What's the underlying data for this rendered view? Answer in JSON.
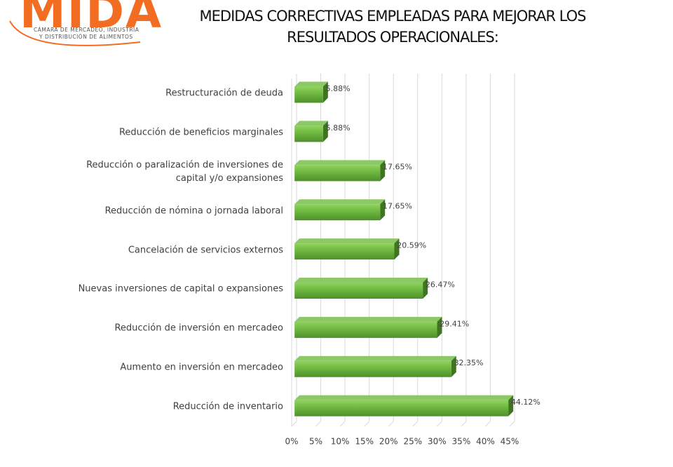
{
  "header": {
    "logo": "MIDA",
    "logo_subtitle_1": "CÁMARA DE MERCADEO, INDUSTRIA",
    "logo_subtitle_2": "Y DISTRIBUCIÓN DE ALIMENTOS"
  },
  "chart_data": {
    "type": "bar",
    "orientation": "horizontal",
    "title": "MEDIDAS CORRECTIVAS EMPLEADAS PARA MEJORAR LOS RESULTADOS OPERACIONALES:",
    "categories": [
      "Restructuración de deuda",
      "Reducción de beneficios marginales",
      "Reducción o paralización de inversiones de capital y/o expansiones",
      "Reducción de nómina o jornada laboral",
      "Cancelación de servicios externos",
      "Nuevas inversiones de capital o expansiones",
      "Reducción de inversión en mercadeo",
      "Aumento en inversión en mercadeo",
      "Reducción de inventario"
    ],
    "values": [
      5.88,
      5.88,
      17.65,
      17.65,
      20.59,
      26.47,
      29.41,
      32.35,
      44.12
    ],
    "value_labels": [
      "5.88%",
      "5.88%",
      "17.65%",
      "17.65%",
      "20.59%",
      "26.47%",
      "29.41%",
      "32.35%",
      "44.12%"
    ],
    "color": "#6ab43e",
    "xlim": [
      0,
      45
    ],
    "xticks": [
      {
        "value": 0,
        "label": "0%"
      },
      {
        "value": 5,
        "label": "5%"
      },
      {
        "value": 10,
        "label": "10%"
      },
      {
        "value": 15,
        "label": "15%"
      },
      {
        "value": 20,
        "label": "20%"
      },
      {
        "value": 25,
        "label": "25%"
      },
      {
        "value": 30,
        "label": "30%"
      },
      {
        "value": 35,
        "label": "35%"
      },
      {
        "value": 40,
        "label": "40%"
      },
      {
        "value": 45,
        "label": "45%"
      }
    ],
    "grid": true
  }
}
